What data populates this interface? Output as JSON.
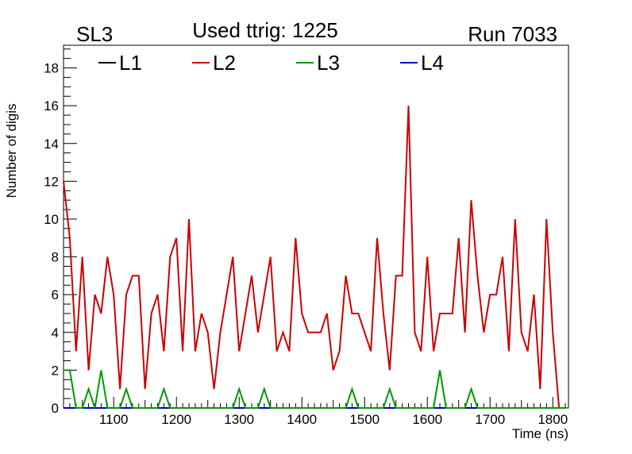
{
  "header": {
    "left": "SL3",
    "center": "Used ttrig: 1225",
    "right": "Run 7033"
  },
  "chart_data": {
    "type": "line",
    "xlabel": "Time (ns)",
    "ylabel": "Number of digis",
    "xlim": [
      1020,
      1825
    ],
    "ylim": [
      0,
      19.2
    ],
    "x_ticks": [
      1100,
      1200,
      1300,
      1400,
      1500,
      1600,
      1700,
      1800
    ],
    "y_ticks": [
      0,
      2,
      4,
      6,
      8,
      10,
      12,
      14,
      16,
      18
    ],
    "grid": false,
    "legend_position": "top",
    "series": [
      {
        "name": "L1",
        "color": "#000000",
        "x": [],
        "values": []
      },
      {
        "name": "L2",
        "color": "#cc0000",
        "x": [
          1020,
          1030,
          1040,
          1050,
          1060,
          1070,
          1080,
          1090,
          1100,
          1110,
          1120,
          1130,
          1140,
          1150,
          1160,
          1170,
          1180,
          1190,
          1200,
          1210,
          1220,
          1230,
          1240,
          1250,
          1260,
          1270,
          1280,
          1290,
          1300,
          1310,
          1320,
          1330,
          1340,
          1350,
          1360,
          1370,
          1380,
          1390,
          1400,
          1410,
          1420,
          1430,
          1440,
          1450,
          1460,
          1470,
          1480,
          1490,
          1500,
          1510,
          1520,
          1530,
          1540,
          1550,
          1560,
          1570,
          1580,
          1590,
          1600,
          1610,
          1620,
          1630,
          1640,
          1650,
          1660,
          1670,
          1680,
          1690,
          1700,
          1710,
          1720,
          1730,
          1740,
          1750,
          1760,
          1770,
          1780,
          1790,
          1800,
          1810,
          1820
        ],
        "values": [
          12,
          9,
          3,
          8,
          2,
          6,
          5,
          8,
          6,
          1,
          6,
          7,
          7,
          1,
          5,
          6,
          3,
          8,
          9,
          3,
          10,
          3,
          5,
          4,
          1,
          4,
          6,
          8,
          3,
          5,
          7,
          4,
          6,
          8,
          3,
          4,
          3,
          9,
          5,
          4,
          4,
          4,
          5,
          2,
          3,
          7,
          5,
          5,
          4,
          3,
          9,
          5,
          2,
          7,
          7,
          16,
          4,
          3,
          8,
          3,
          5,
          5,
          5,
          9,
          4,
          11,
          7,
          4,
          6,
          6,
          8,
          3,
          10,
          4,
          3,
          6,
          1,
          10,
          4,
          0,
          0
        ]
      },
      {
        "name": "L3",
        "color": "#009900",
        "x": [
          1020,
          1030,
          1040,
          1050,
          1060,
          1070,
          1080,
          1090,
          1100,
          1110,
          1120,
          1130,
          1140,
          1150,
          1160,
          1170,
          1180,
          1190,
          1200,
          1210,
          1220,
          1230,
          1240,
          1250,
          1260,
          1270,
          1280,
          1290,
          1300,
          1310,
          1320,
          1330,
          1340,
          1350,
          1360,
          1370,
          1380,
          1390,
          1400,
          1410,
          1420,
          1430,
          1440,
          1450,
          1460,
          1470,
          1480,
          1490,
          1500,
          1510,
          1520,
          1530,
          1540,
          1550,
          1560,
          1570,
          1580,
          1590,
          1600,
          1610,
          1620,
          1630,
          1640,
          1650,
          1660,
          1670,
          1680,
          1690,
          1700,
          1710,
          1720,
          1730,
          1740,
          1750,
          1760,
          1770,
          1780,
          1790,
          1800,
          1810,
          1820
        ],
        "values": [
          2,
          2,
          0,
          0,
          1,
          0,
          2,
          0,
          0,
          0,
          1,
          0,
          0,
          0,
          0,
          0,
          1,
          0,
          0,
          0,
          0,
          0,
          0,
          0,
          0,
          0,
          0,
          0,
          1,
          0,
          0,
          0,
          1,
          0,
          0,
          0,
          0,
          0,
          0,
          0,
          0,
          0,
          0,
          0,
          0,
          0,
          1,
          0,
          0,
          0,
          0,
          0,
          1,
          0,
          0,
          0,
          0,
          0,
          0,
          0,
          2,
          0,
          0,
          0,
          0,
          1,
          0,
          0,
          0,
          0,
          0,
          0,
          0,
          0,
          0,
          0,
          0,
          0,
          0,
          0,
          0
        ]
      },
      {
        "name": "L4",
        "color": "#0000cc",
        "x": [
          1020,
          1820
        ],
        "values": [
          0,
          0
        ]
      }
    ]
  }
}
